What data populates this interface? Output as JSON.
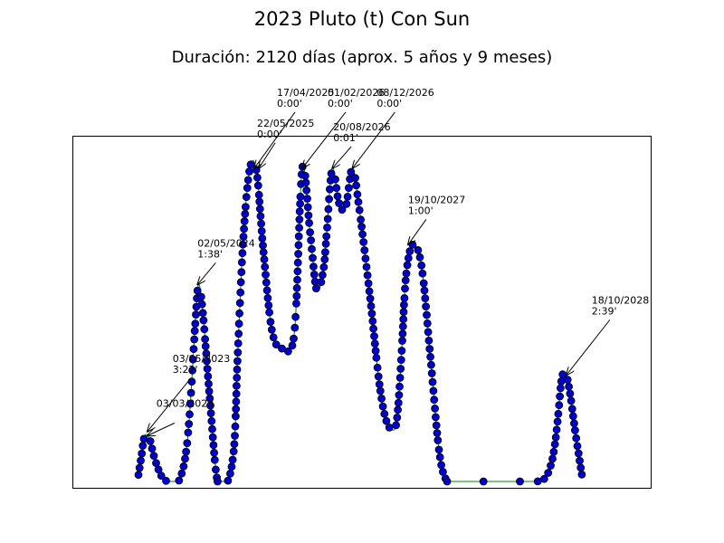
{
  "chart_data": {
    "type": "line",
    "title": "2023 Pluto (t) Con Sun",
    "subtitle": "Duración: 2120 días (aprox. 5 años y 9 meses)",
    "xlabel": "",
    "ylabel": "",
    "grid": false,
    "legend": "none",
    "colors": {
      "line": "#008000",
      "marker_fill": "#0000cc",
      "marker_edge": "#000000",
      "axes": "#000000",
      "background": "#ffffff"
    },
    "x_unit": "days since start of conjunction",
    "xlim": [
      0,
      2120
    ],
    "ylim": [
      0,
      4
    ],
    "series": [
      {
        "x": [
          0,
          12,
          28,
          50,
          70,
          100,
          130,
          180,
          220,
          255,
          270,
          290,
          320,
          355,
          400,
          430,
          445,
          470,
          500,
          530,
          560,
          600,
          650,
          700,
          735,
          770,
          800,
          830,
          845,
          870,
          900,
          930,
          960,
          990,
          1040,
          1080,
          1110,
          1140,
          1160,
          1180,
          1200,
          1230,
          1270,
          1310,
          1350,
          1385,
          1420,
          1460,
          1500,
          1540,
          1570,
          1595,
          1625,
          1660,
          1700,
          1750,
          1790,
          1830,
          1860,
          1880,
          1900,
          1920,
          1940,
          1960,
          1980,
          1990
        ],
        "y": [
          0.08,
          0.28,
          0.55,
          0.51,
          0.3,
          0.08,
          0.0,
          0.0,
          0.5,
          1.9,
          2.37,
          2.0,
          1.0,
          0.0,
          0.0,
          0.45,
          1.5,
          2.9,
          3.77,
          3.73,
          2.8,
          1.8,
          1.6,
          1.8,
          3.77,
          3.0,
          2.3,
          2.55,
          3.0,
          3.77,
          3.35,
          3.3,
          3.77,
          3.3,
          2.2,
          1.2,
          0.75,
          0.62,
          0.75,
          1.5,
          2.45,
          2.85,
          2.6,
          1.5,
          0.35,
          0.0,
          0.0,
          0.0,
          0.0,
          0.0,
          0.0,
          0.0,
          0.0,
          0.0,
          0.0,
          0.0,
          0.0,
          0.06,
          0.3,
          0.7,
          1.25,
          1.28,
          1.0,
          0.6,
          0.25,
          0.08
        ]
      }
    ],
    "annotations": [
      {
        "date": "03/03/2023",
        "time": "",
        "x": 40,
        "y": 0.55
      },
      {
        "date": "03/05/2023",
        "time": "3:22'",
        "x": 40,
        "y": 0.6
      },
      {
        "date": "02/05/2024",
        "time": "1:38'",
        "x": 265,
        "y": 2.37
      },
      {
        "date": "22/05/2025",
        "time": "0:00'",
        "x": 540,
        "y": 3.77
      },
      {
        "date": "17/04/2025",
        "time": "0:00'",
        "x": 520,
        "y": 3.77
      },
      {
        "date": "01/02/2026",
        "time": "0:00'",
        "x": 735,
        "y": 3.77
      },
      {
        "date": "20/08/2026",
        "time": "0:01'",
        "x": 870,
        "y": 3.77
      },
      {
        "date": "08/12/2026",
        "time": "0:00'",
        "x": 960,
        "y": 3.77
      },
      {
        "date": "19/10/2027",
        "time": "1:00'",
        "x": 1210,
        "y": 2.85
      },
      {
        "date": "18/10/2028",
        "time": "2:39'",
        "x": 1920,
        "y": 1.28
      }
    ]
  }
}
